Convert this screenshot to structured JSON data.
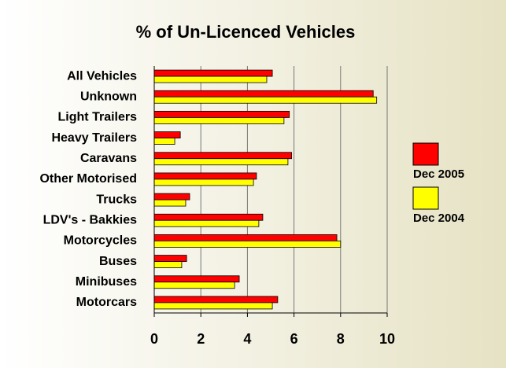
{
  "chart_data": {
    "type": "hbar",
    "title": "% of Un-Licenced Vehicles",
    "categories": [
      "All Vehicles",
      "Unknown",
      "Light Trailers",
      "Heavy Trailers",
      "Caravans",
      "Other Motorised",
      "Trucks",
      "LDV's - Bakkies",
      "Motorcycles",
      "Buses",
      "Minibuses",
      "Motorcars"
    ],
    "series": [
      {
        "name": "Dec 2005",
        "color": "#ff0000",
        "values": [
          5.07,
          9.4,
          5.8,
          1.12,
          5.9,
          4.39,
          1.52,
          4.66,
          7.84,
          1.39,
          3.65,
          5.3
        ]
      },
      {
        "name": "Dec 2004",
        "color": "#ffff00",
        "values": [
          4.83,
          9.55,
          5.57,
          0.88,
          5.74,
          4.26,
          1.35,
          4.49,
          8.0,
          1.18,
          3.45,
          5.07
        ]
      }
    ],
    "xlim": [
      0,
      10
    ],
    "xticks": [
      0,
      2,
      4,
      6,
      8,
      10
    ],
    "grid": true,
    "legend": "right"
  }
}
